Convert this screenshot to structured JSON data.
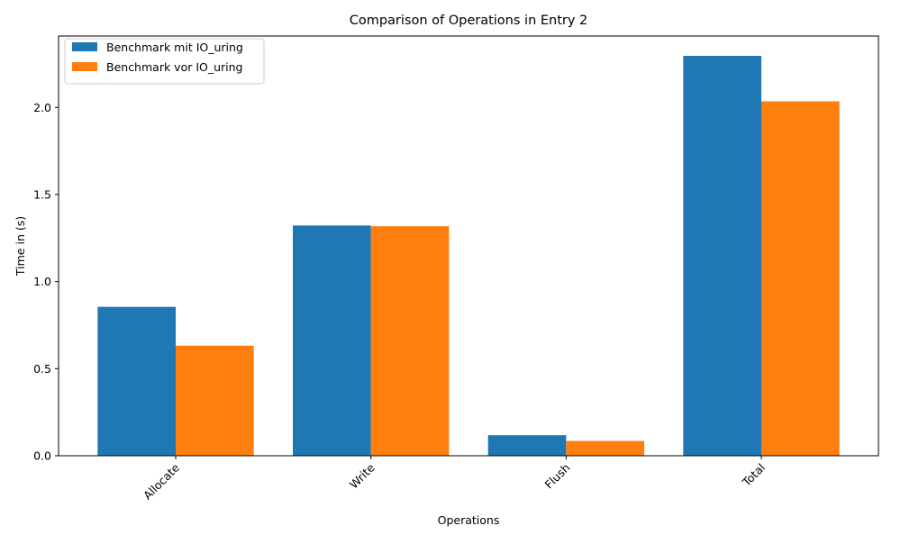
{
  "chart_data": {
    "type": "bar",
    "title": "Comparison of Operations in Entry 2",
    "xlabel": "Operations",
    "ylabel": "Time in (s)",
    "categories": [
      "Allocate",
      "Write",
      "Flush",
      "Total"
    ],
    "series": [
      {
        "name": "Benchmark mit IO_uring",
        "color": "#1f77b4",
        "values": [
          0.855,
          1.322,
          0.118,
          2.296
        ]
      },
      {
        "name": "Benchmark vor IO_uring",
        "color": "#ff7f0e",
        "values": [
          0.632,
          1.318,
          0.085,
          2.035
        ]
      }
    ],
    "ylim": [
      0,
      2.41
    ],
    "yticks": [
      "0.0",
      "0.5",
      "1.0",
      "1.5",
      "2.0"
    ],
    "grid": false,
    "legend_position": "top-left",
    "xtick_rotation": "45 degrees"
  }
}
